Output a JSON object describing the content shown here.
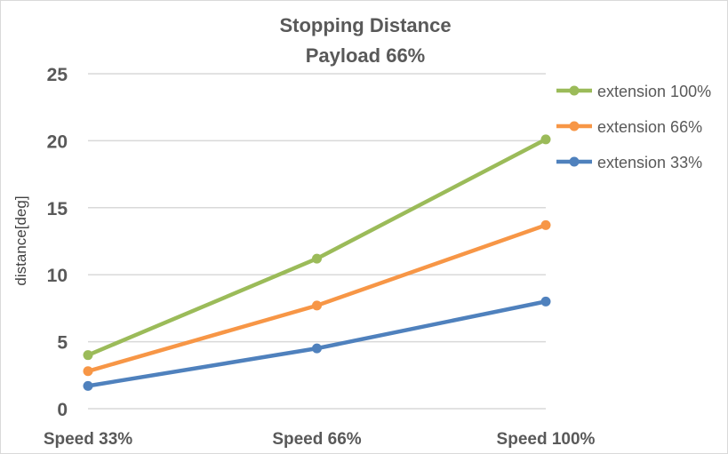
{
  "chart_data": {
    "type": "line",
    "title": "Stopping Distance",
    "subtitle": "Payload 66%",
    "xlabel": "",
    "ylabel": "distance[deg]",
    "categories": [
      "Speed 33%",
      "Speed 66%",
      "Speed 100%"
    ],
    "ylim": [
      0,
      25
    ],
    "yticks": [
      "0",
      "5",
      "10",
      "15",
      "20",
      "25"
    ],
    "grid": true,
    "legend_position": "right",
    "series": [
      {
        "name": "extension 100%",
        "color": "#9bbb59",
        "values": [
          4.0,
          11.2,
          20.1
        ]
      },
      {
        "name": "extension 66%",
        "color": "#f79646",
        "values": [
          2.8,
          7.7,
          13.7
        ]
      },
      {
        "name": "extension 33%",
        "color": "#4f81bd",
        "values": [
          1.7,
          4.5,
          8.0
        ]
      }
    ]
  }
}
